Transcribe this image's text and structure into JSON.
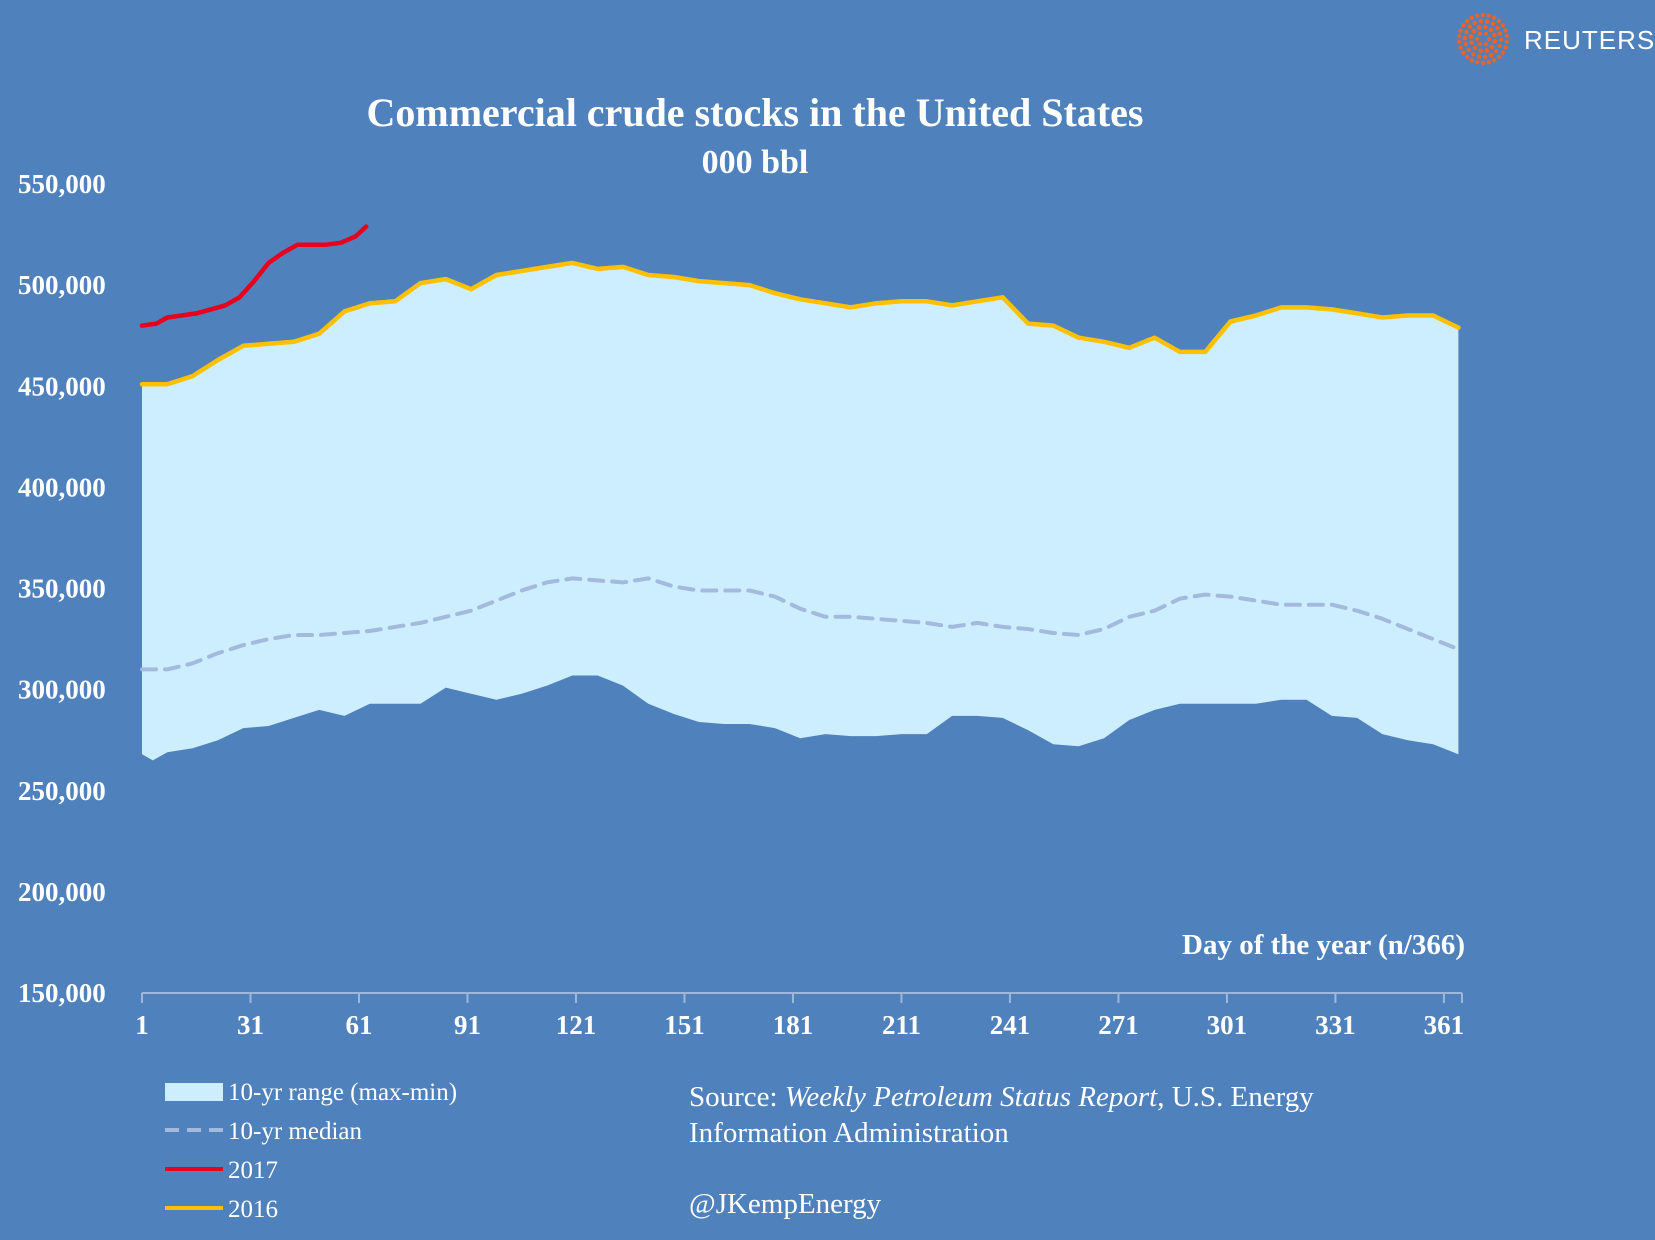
{
  "brand": {
    "name": "REUTERS",
    "logo_icon": "reuters-dot-circle-icon",
    "logo_color": "#e8642a"
  },
  "colors": {
    "background": "#4f81bd",
    "range_fill": "#cdeeff",
    "median": "#a3b9dd",
    "y2017": "#e8001c",
    "y2016": "#ffc000"
  },
  "chart_data": {
    "type": "line",
    "title": "Commercial crude stocks in the United States",
    "subtitle": "000 bbl",
    "xlabel": "Day of the year (n/366)",
    "ylabel": "",
    "xlim": [
      1,
      366
    ],
    "ylim": [
      150000,
      550000
    ],
    "x_ticks": [
      "1",
      "31",
      "61",
      "91",
      "121",
      "151",
      "181",
      "211",
      "241",
      "271",
      "301",
      "331",
      "361"
    ],
    "y_ticks": [
      "550,000",
      "500,000",
      "450,000",
      "400,000",
      "350,000",
      "300,000",
      "250,000",
      "200,000",
      "150,000"
    ],
    "series": [
      {
        "name": "10-yr range (max-min)",
        "kind": "band",
        "x": [
          1,
          4,
          8,
          15,
          22,
          29,
          36,
          43,
          50,
          57,
          64,
          71,
          78,
          85,
          92,
          99,
          106,
          113,
          120,
          127,
          134,
          141,
          148,
          155,
          162,
          169,
          176,
          183,
          190,
          197,
          204,
          211,
          218,
          225,
          232,
          239,
          246,
          253,
          260,
          267,
          274,
          281,
          288,
          295,
          302,
          309,
          316,
          323,
          330,
          337,
          344,
          351,
          358,
          365
        ],
        "upper": [
          451000,
          451000,
          451000,
          455000,
          463000,
          470000,
          471000,
          472000,
          476000,
          487000,
          491000,
          492000,
          501000,
          503000,
          498000,
          505000,
          507000,
          509000,
          511000,
          508000,
          509000,
          505000,
          504000,
          502000,
          501000,
          500000,
          496000,
          493000,
          491000,
          489000,
          491000,
          492000,
          492000,
          490000,
          492000,
          494000,
          481000,
          480000,
          474000,
          472000,
          469000,
          474000,
          467000,
          467000,
          482000,
          485000,
          489000,
          489000,
          488000,
          486000,
          484000,
          485000,
          485000,
          479000
        ],
        "lower": [
          268000,
          265000,
          269000,
          271000,
          275000,
          281000,
          282000,
          286000,
          290000,
          287000,
          293000,
          293000,
          293000,
          301000,
          298000,
          295000,
          298000,
          302000,
          307000,
          307000,
          302000,
          293000,
          288000,
          284000,
          283000,
          283000,
          281000,
          276000,
          278000,
          277000,
          277000,
          278000,
          278000,
          287000,
          287000,
          286000,
          280000,
          273000,
          272000,
          276000,
          285000,
          290000,
          293000,
          293000,
          293000,
          293000,
          295000,
          295000,
          287000,
          286000,
          278000,
          275000,
          273000,
          268000
        ]
      },
      {
        "name": "10-yr median",
        "kind": "dashed-line",
        "x": [
          1,
          8,
          15,
          22,
          29,
          36,
          43,
          50,
          57,
          64,
          71,
          78,
          85,
          92,
          99,
          106,
          113,
          120,
          127,
          134,
          141,
          148,
          155,
          162,
          169,
          176,
          183,
          190,
          197,
          204,
          211,
          218,
          225,
          232,
          239,
          246,
          253,
          260,
          267,
          274,
          281,
          288,
          295,
          302,
          309,
          316,
          323,
          330,
          337,
          344,
          351,
          358,
          365
        ],
        "values": [
          310000,
          310000,
          313000,
          318000,
          322000,
          325000,
          327000,
          327000,
          328000,
          329000,
          331000,
          333000,
          336000,
          339000,
          344000,
          349000,
          353000,
          355000,
          354000,
          353000,
          355000,
          351000,
          349000,
          349000,
          349000,
          346000,
          340000,
          336000,
          336000,
          335000,
          334000,
          333000,
          331000,
          333000,
          331000,
          330000,
          328000,
          327000,
          330000,
          336000,
          339000,
          345000,
          347000,
          346000,
          344000,
          342000,
          342000,
          342000,
          339000,
          335000,
          330000,
          325000,
          320000
        ]
      },
      {
        "name": "2017",
        "kind": "line",
        "x": [
          1,
          5,
          8,
          12,
          16,
          20,
          24,
          28,
          32,
          36,
          40,
          44,
          48,
          52,
          56,
          60,
          63
        ],
        "values": [
          480000,
          481000,
          484000,
          485000,
          486000,
          488000,
          490000,
          494000,
          502000,
          511000,
          516000,
          520000,
          520000,
          520000,
          521000,
          524000,
          529000
        ]
      },
      {
        "name": "2016",
        "kind": "line",
        "x": [
          1,
          4,
          8,
          15,
          22,
          29,
          36,
          43,
          50,
          57,
          64,
          71,
          78,
          85,
          92,
          99,
          106,
          113,
          120,
          127,
          134,
          141,
          148,
          155,
          162,
          169,
          176,
          183,
          190,
          197,
          204,
          211,
          218,
          225,
          232,
          239,
          246,
          253,
          260,
          267,
          274,
          281,
          288,
          295,
          302,
          309,
          316,
          323,
          330,
          337,
          344,
          351,
          358,
          365
        ],
        "values": [
          451000,
          451000,
          451000,
          455000,
          463000,
          470000,
          471000,
          472000,
          476000,
          487000,
          491000,
          492000,
          501000,
          503000,
          498000,
          505000,
          507000,
          509000,
          511000,
          508000,
          509000,
          505000,
          504000,
          502000,
          501000,
          500000,
          496000,
          493000,
          491000,
          489000,
          491000,
          492000,
          492000,
          490000,
          492000,
          494000,
          481000,
          480000,
          474000,
          472000,
          469000,
          474000,
          467000,
          467000,
          482000,
          485000,
          489000,
          489000,
          488000,
          486000,
          484000,
          485000,
          485000,
          479000
        ]
      }
    ]
  },
  "legend": {
    "items": [
      {
        "label": "10-yr range (max-min)",
        "kind": "swatch"
      },
      {
        "label": "10-yr median",
        "kind": "dash"
      },
      {
        "label": "2017",
        "kind": "line"
      },
      {
        "label": "2016",
        "kind": "line"
      }
    ]
  },
  "source": {
    "prefix": "Source: ",
    "report": "Weekly Petroleum Status Report",
    "rest_line1": ", U.S. Energy",
    "line2": "Information Administration",
    "handle": "@JKempEnergy"
  }
}
